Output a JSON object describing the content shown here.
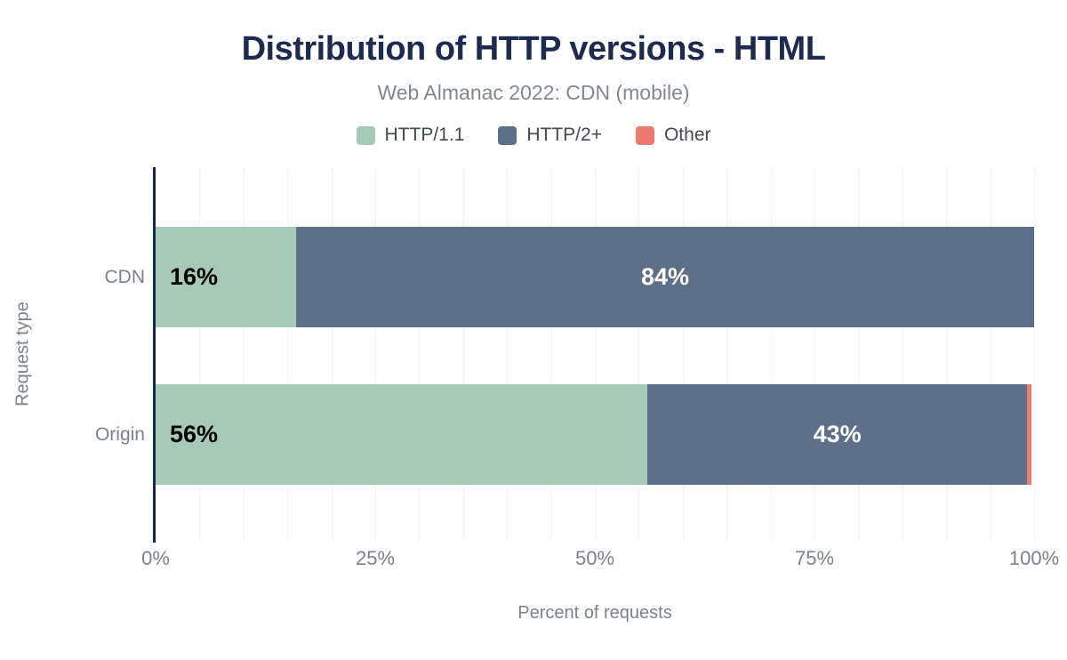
{
  "header": {
    "title": "Distribution of HTTP versions - HTML",
    "subtitle": "Web Almanac 2022: CDN (mobile)"
  },
  "legend": {
    "position": "top",
    "items": [
      {
        "label": "HTTP/1.1",
        "color": "#a7c9b8"
      },
      {
        "label": "HTTP/2+",
        "color": "#5e7089"
      },
      {
        "label": "Other",
        "color": "#ec7a6e"
      }
    ]
  },
  "chart_data": {
    "type": "bar",
    "orientation": "horizontal",
    "stacked": true,
    "title": "Distribution of HTTP versions - HTML",
    "subtitle": "Web Almanac 2022: CDN (mobile)",
    "xlabel": "Percent of requests",
    "ylabel": "Request type",
    "categories": [
      "CDN",
      "Origin"
    ],
    "series": [
      {
        "name": "HTTP/1.1",
        "color": "#a7c9b8",
        "values": [
          16,
          56
        ]
      },
      {
        "name": "HTTP/2+",
        "color": "#5e7089",
        "values": [
          84,
          43.2
        ]
      },
      {
        "name": "Other",
        "color": "#ec7a6e",
        "values": [
          0,
          0.5
        ]
      }
    ],
    "data_labels": [
      [
        "16%",
        "84%",
        ""
      ],
      [
        "56%",
        "43%",
        ""
      ]
    ],
    "xlim": [
      0,
      100
    ],
    "xticks": [
      {
        "value": 0,
        "label": "0%"
      },
      {
        "value": 25,
        "label": "25%"
      },
      {
        "value": 50,
        "label": "50%"
      },
      {
        "value": 75,
        "label": "75%"
      },
      {
        "value": 100,
        "label": "100%"
      }
    ],
    "grid": {
      "vertical_every_pct": 5,
      "horizontal": false
    },
    "legend_position": "top"
  },
  "colors": {
    "title_text": "#1e2b50",
    "muted_text": "#7c828b",
    "axis_line": "#16274a",
    "gridline": "#f2f2f2",
    "label_on_light": "#000000",
    "label_on_dark": "#ffffff"
  }
}
